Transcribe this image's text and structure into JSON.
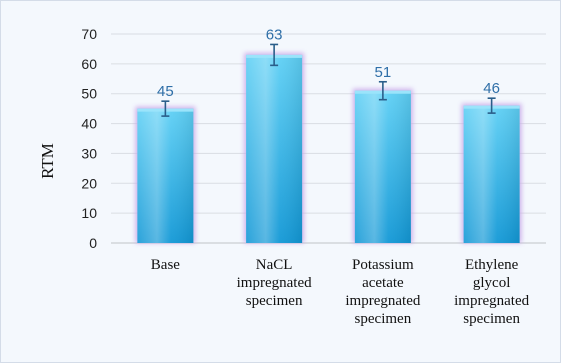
{
  "colors": {
    "bar_top": "#5fd0f5",
    "bar_bottom": "#1298d6",
    "bar_glow": "#c9a8e8",
    "error_bar": "#2a5e8a",
    "data_label": "#2f6fa8"
  },
  "chart_data": {
    "type": "bar",
    "categories": [
      "Base",
      "NaCL impregnated specimen",
      "Potassium acetate impregnated specimen",
      "Ethylene glycol impregnated specimen"
    ],
    "category_lines": [
      [
        "Base"
      ],
      [
        "NaCL",
        "impregnated",
        "specimen"
      ],
      [
        "Potassium",
        "acetate",
        "impregnated",
        "specimen"
      ],
      [
        "Ethylene",
        "glycol",
        "impregnated",
        "specimen"
      ]
    ],
    "values": [
      45,
      63,
      51,
      46
    ],
    "error": [
      2.5,
      3.5,
      3,
      2.5
    ],
    "data_labels": [
      "45",
      "63",
      "51",
      "46"
    ],
    "ylabel": "RTM",
    "ylim": [
      0,
      70
    ],
    "yticks": [
      0,
      10,
      20,
      30,
      40,
      50,
      60,
      70
    ],
    "grid": true,
    "legend": false
  }
}
